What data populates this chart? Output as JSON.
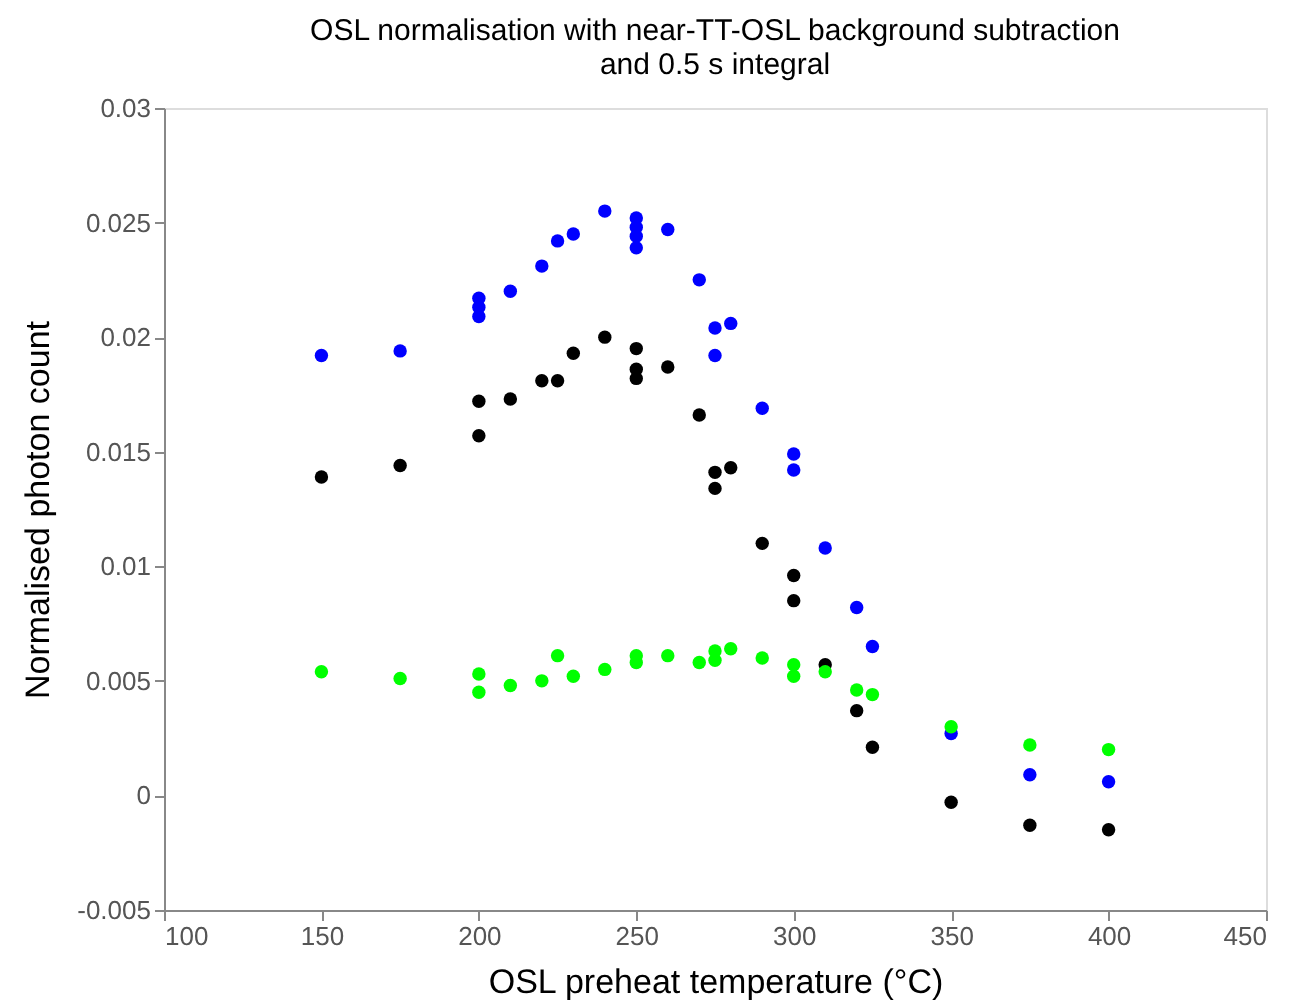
{
  "chart_data": {
    "type": "scatter",
    "title": "OSL normalisation with near-TT-OSL background subtraction\nand 0.5 s integral",
    "xlabel": "OSL preheat temperature (°C)",
    "ylabel": "Normalised photon count",
    "xlim": [
      100,
      450
    ],
    "xticks": [
      100,
      150,
      200,
      250,
      300,
      350,
      400,
      450
    ],
    "ylim": [
      -0.005,
      0.03
    ],
    "yticks": [
      -0.005,
      0,
      0.005,
      0.01,
      0.015,
      0.02,
      0.025,
      0.03
    ],
    "grid": false,
    "legend": false,
    "marker": "circle",
    "series": [
      {
        "color": "#0000ff",
        "x": [
          150,
          175,
          200,
          200,
          200,
          210,
          220,
          225,
          230,
          240,
          250,
          250,
          250,
          250,
          260,
          270,
          275,
          275,
          280,
          290,
          300,
          300,
          310,
          320,
          325,
          350,
          375,
          400
        ],
        "values": [
          0.0192,
          0.0194,
          0.0217,
          0.0213,
          0.0209,
          0.022,
          0.0231,
          0.0242,
          0.0245,
          0.0255,
          0.0252,
          0.0248,
          0.0244,
          0.0239,
          0.0247,
          0.0225,
          0.0204,
          0.0192,
          0.0206,
          0.0169,
          0.0149,
          0.0142,
          0.0108,
          0.0082,
          0.0065,
          0.0027,
          0.0009,
          0.0006
        ]
      },
      {
        "color": "#000000",
        "x": [
          150,
          175,
          200,
          200,
          210,
          220,
          225,
          230,
          240,
          250,
          250,
          250,
          260,
          270,
          275,
          275,
          280,
          290,
          300,
          300,
          310,
          320,
          325,
          350,
          375,
          400
        ],
        "values": [
          0.0139,
          0.0144,
          0.0172,
          0.0157,
          0.0173,
          0.0181,
          0.0181,
          0.0193,
          0.02,
          0.0195,
          0.0186,
          0.0182,
          0.0187,
          0.0166,
          0.0141,
          0.0134,
          0.0143,
          0.011,
          0.0096,
          0.0085,
          0.0057,
          0.0037,
          0.0021,
          -0.0003,
          -0.0013,
          -0.0015
        ]
      },
      {
        "color": "#00ff00",
        "x": [
          150,
          175,
          200,
          200,
          210,
          220,
          225,
          230,
          240,
          250,
          250,
          260,
          270,
          275,
          275,
          280,
          290,
          300,
          300,
          310,
          320,
          325,
          350,
          375,
          400
        ],
        "values": [
          0.0054,
          0.0051,
          0.0053,
          0.0045,
          0.0048,
          0.005,
          0.0061,
          0.0052,
          0.0055,
          0.0061,
          0.0058,
          0.0061,
          0.0058,
          0.0063,
          0.0059,
          0.0064,
          0.006,
          0.0057,
          0.0052,
          0.0054,
          0.0046,
          0.0044,
          0.003,
          0.0022,
          0.002
        ]
      }
    ]
  }
}
